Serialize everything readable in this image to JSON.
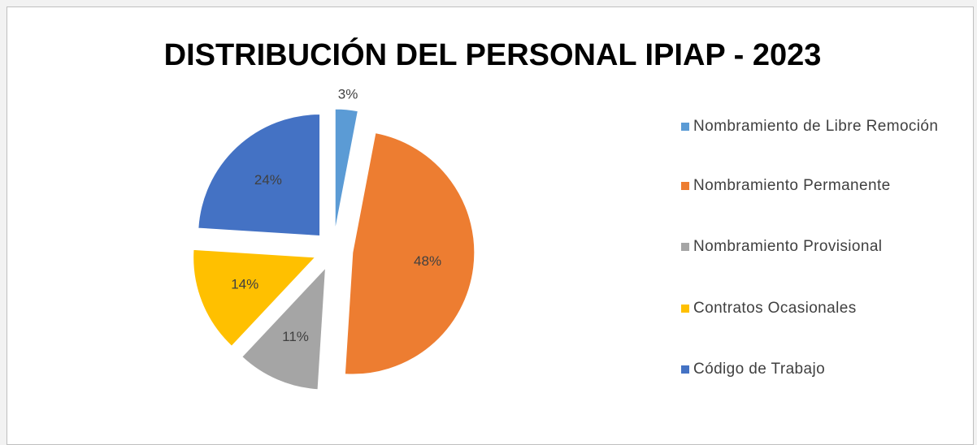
{
  "chart_data": {
    "type": "pie",
    "title": "DISTRIBUCIÓN DEL PERSONAL IPIAP - 2023",
    "categories": [
      "Nombramiento de Libre Remoción",
      "Nombramiento Permanente",
      "Nombramiento Provisional",
      "Contratos Ocasionales",
      "Código de Trabajo"
    ],
    "values": [
      3,
      48,
      11,
      14,
      24
    ],
    "value_labels": [
      "3%",
      "48%",
      "11%",
      "14%",
      "24%"
    ],
    "colors": [
      "#5b9bd5",
      "#ed7d31",
      "#a5a5a5",
      "#ffc000",
      "#4472c4"
    ],
    "legend": "right"
  }
}
